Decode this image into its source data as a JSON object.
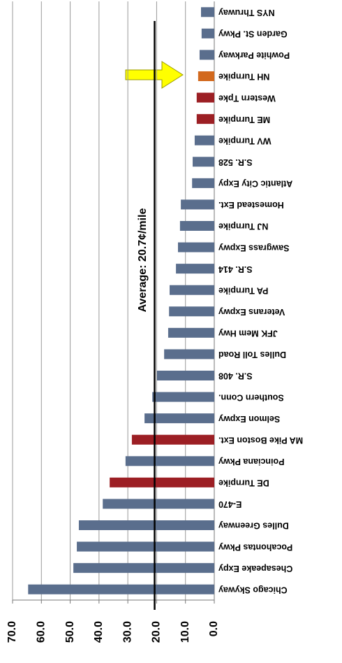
{
  "chart_data": {
    "type": "bar",
    "orientation": "horizontal",
    "categories": [
      "NYS Thruway",
      "Garden St. Pkwy",
      "Powhite Parkway",
      "NH Turnpike",
      "Western Tpke",
      "ME Turnpike",
      "WV Turnpike",
      "S.R. 528",
      "Atlantic City Expy",
      "Homestead Ext.",
      "NJ Turnpike",
      "Sawgrass Expwy",
      "S.R. 414",
      "PA Turnpike",
      "Veterans Expwy",
      "JFK Mem Hwy",
      "Dulles Toll Road",
      "S.R. 408",
      "Southern Conn.",
      "Selmon Expwy",
      "MA Pike Boston Ext.",
      "Poinciana Pkwy",
      "DE Turnpike",
      "E-470",
      "Dulles Greenway",
      "Pocahontas Pkwy",
      "Chesapeake Expy",
      "Chicago Skyway"
    ],
    "values": [
      4.6,
      4.4,
      5.1,
      5.6,
      6.1,
      6.1,
      6.8,
      7.5,
      7.7,
      11.6,
      11.9,
      12.6,
      13.3,
      15.5,
      15.7,
      16.0,
      17.4,
      19.9,
      21.5,
      24.2,
      28.6,
      30.8,
      36.3,
      38.7,
      47.0,
      47.7,
      48.9,
      64.6
    ],
    "colors": [
      "#5a6e8d",
      "#5a6e8d",
      "#5a6e8d",
      "#d2691e",
      "#9c1f24",
      "#9c1f24",
      "#5a6e8d",
      "#5a6e8d",
      "#5a6e8d",
      "#5a6e8d",
      "#5a6e8d",
      "#5a6e8d",
      "#5a6e8d",
      "#5a6e8d",
      "#5a6e8d",
      "#5a6e8d",
      "#5a6e8d",
      "#5a6e8d",
      "#5a6e8d",
      "#5a6e8d",
      "#9c1f24",
      "#5a6e8d",
      "#9c1f24",
      "#5a6e8d",
      "#5a6e8d",
      "#5a6e8d",
      "#5a6e8d",
      "#5a6e8d"
    ],
    "xlim": [
      0,
      70
    ],
    "xticks": [
      {
        "value": 0,
        "label": "0.0"
      },
      {
        "value": 10,
        "label": "10.0"
      },
      {
        "value": 20,
        "label": "20.0"
      },
      {
        "value": 30,
        "label": "30.0"
      },
      {
        "value": 40,
        "label": "40.0"
      },
      {
        "value": 50,
        "label": "50.0"
      },
      {
        "value": 60,
        "label": "60.0"
      },
      {
        "value": 70,
        "label": "70.0"
      }
    ],
    "grid": true,
    "average": {
      "value": 20.7,
      "label": "Average: 20.7¢/mile"
    }
  }
}
